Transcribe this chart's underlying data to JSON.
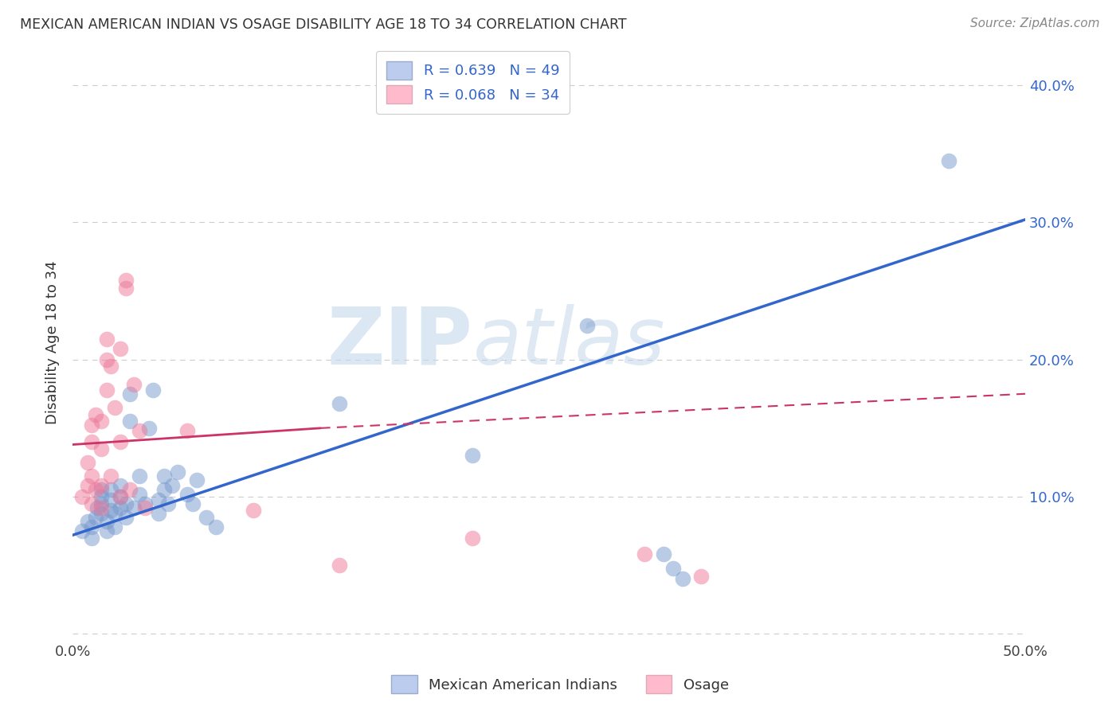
{
  "title": "MEXICAN AMERICAN INDIAN VS OSAGE DISABILITY AGE 18 TO 34 CORRELATION CHART",
  "source": "Source: ZipAtlas.com",
  "ylabel": "Disability Age 18 to 34",
  "xlim": [
    0.0,
    0.5
  ],
  "ylim": [
    -0.005,
    0.43
  ],
  "blue_scatter": [
    [
      0.005,
      0.075
    ],
    [
      0.008,
      0.082
    ],
    [
      0.01,
      0.07
    ],
    [
      0.01,
      0.078
    ],
    [
      0.012,
      0.085
    ],
    [
      0.013,
      0.092
    ],
    [
      0.015,
      0.088
    ],
    [
      0.015,
      0.095
    ],
    [
      0.015,
      0.1
    ],
    [
      0.015,
      0.105
    ],
    [
      0.018,
      0.075
    ],
    [
      0.018,
      0.082
    ],
    [
      0.02,
      0.09
    ],
    [
      0.02,
      0.098
    ],
    [
      0.02,
      0.105
    ],
    [
      0.022,
      0.078
    ],
    [
      0.022,
      0.088
    ],
    [
      0.025,
      0.092
    ],
    [
      0.025,
      0.1
    ],
    [
      0.025,
      0.108
    ],
    [
      0.028,
      0.085
    ],
    [
      0.028,
      0.095
    ],
    [
      0.03,
      0.155
    ],
    [
      0.03,
      0.175
    ],
    [
      0.032,
      0.092
    ],
    [
      0.035,
      0.102
    ],
    [
      0.035,
      0.115
    ],
    [
      0.038,
      0.095
    ],
    [
      0.04,
      0.15
    ],
    [
      0.042,
      0.178
    ],
    [
      0.045,
      0.088
    ],
    [
      0.045,
      0.098
    ],
    [
      0.048,
      0.105
    ],
    [
      0.048,
      0.115
    ],
    [
      0.05,
      0.095
    ],
    [
      0.052,
      0.108
    ],
    [
      0.055,
      0.118
    ],
    [
      0.06,
      0.102
    ],
    [
      0.063,
      0.095
    ],
    [
      0.065,
      0.112
    ],
    [
      0.07,
      0.085
    ],
    [
      0.075,
      0.078
    ],
    [
      0.14,
      0.168
    ],
    [
      0.21,
      0.13
    ],
    [
      0.27,
      0.225
    ],
    [
      0.31,
      0.058
    ],
    [
      0.315,
      0.048
    ],
    [
      0.46,
      0.345
    ],
    [
      0.32,
      0.04
    ]
  ],
  "pink_scatter": [
    [
      0.005,
      0.1
    ],
    [
      0.008,
      0.108
    ],
    [
      0.008,
      0.125
    ],
    [
      0.01,
      0.095
    ],
    [
      0.01,
      0.115
    ],
    [
      0.01,
      0.14
    ],
    [
      0.01,
      0.152
    ],
    [
      0.012,
      0.105
    ],
    [
      0.012,
      0.16
    ],
    [
      0.015,
      0.092
    ],
    [
      0.015,
      0.108
    ],
    [
      0.015,
      0.135
    ],
    [
      0.015,
      0.155
    ],
    [
      0.018,
      0.178
    ],
    [
      0.018,
      0.2
    ],
    [
      0.018,
      0.215
    ],
    [
      0.02,
      0.115
    ],
    [
      0.02,
      0.195
    ],
    [
      0.022,
      0.165
    ],
    [
      0.025,
      0.1
    ],
    [
      0.025,
      0.14
    ],
    [
      0.025,
      0.208
    ],
    [
      0.028,
      0.252
    ],
    [
      0.028,
      0.258
    ],
    [
      0.03,
      0.105
    ],
    [
      0.032,
      0.182
    ],
    [
      0.035,
      0.148
    ],
    [
      0.038,
      0.092
    ],
    [
      0.06,
      0.148
    ],
    [
      0.095,
      0.09
    ],
    [
      0.14,
      0.05
    ],
    [
      0.21,
      0.07
    ],
    [
      0.3,
      0.058
    ],
    [
      0.33,
      0.042
    ]
  ],
  "blue_trendline": {
    "x_start": 0.0,
    "y_start": 0.072,
    "x_end": 0.5,
    "y_end": 0.302
  },
  "pink_trendline_solid": {
    "x_start": 0.0,
    "y_start": 0.138,
    "x_end": 0.13,
    "y_end": 0.15
  },
  "pink_trendline_dashed": {
    "x_start": 0.13,
    "y_start": 0.15,
    "x_end": 0.5,
    "y_end": 0.175
  },
  "blue_line_color": "#3366CC",
  "pink_line_color": "#CC3366",
  "blue_scatter_color": "#7799CC",
  "pink_scatter_color": "#EE7799",
  "blue_legend_face": "#BBCCEE",
  "pink_legend_face": "#FFBBCC",
  "watermark_zip": "ZIP",
  "watermark_atlas": "atlas",
  "background_color": "#FFFFFF",
  "grid_color": "#CCCCCC"
}
